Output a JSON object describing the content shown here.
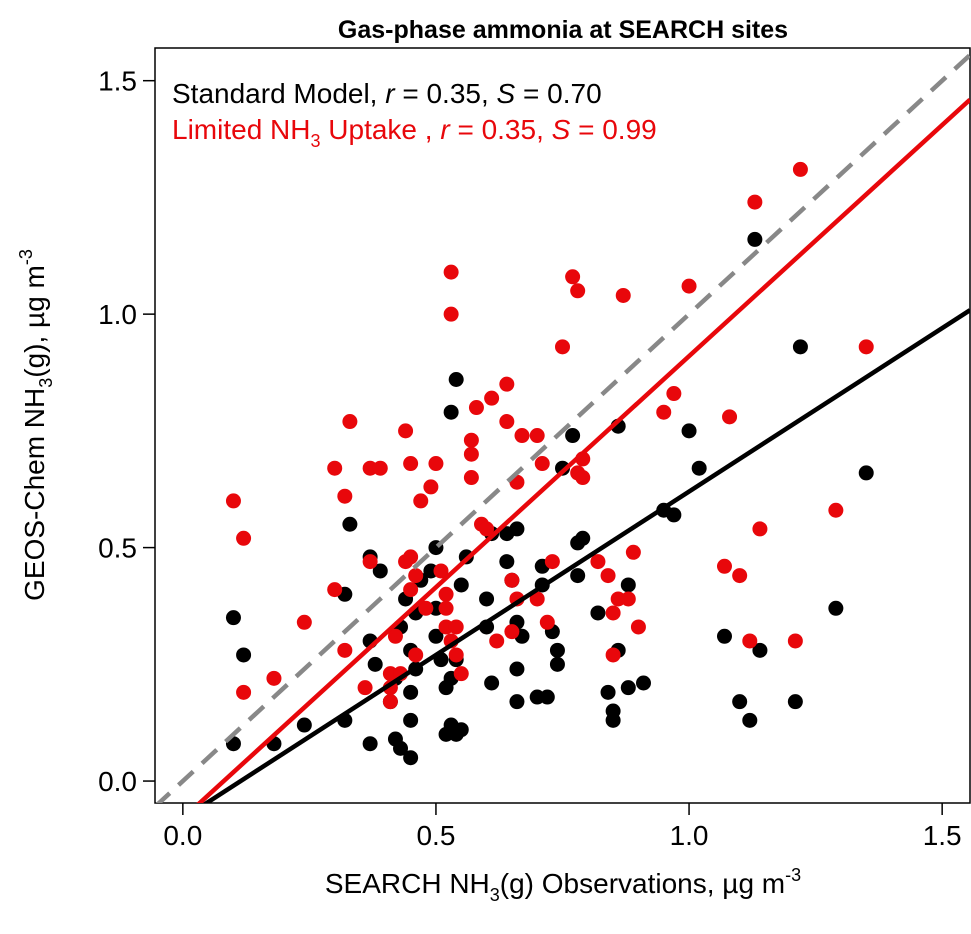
{
  "chart_data": {
    "type": "scatter",
    "title": "Gas-phase ammonia at SEARCH sites",
    "xlabel": [
      {
        "text": "SEARCH NH"
      },
      {
        "text": "3",
        "sub": true
      },
      {
        "text": "(g) Observations, µg m"
      },
      {
        "text": "-3",
        "sup": true
      }
    ],
    "ylabel": [
      {
        "text": "GEOS-Chem NH"
      },
      {
        "text": "3",
        "sub": true
      },
      {
        "text": "(g), µg m"
      },
      {
        "text": "-3",
        "sup": true
      }
    ],
    "xlim": [
      -0.055,
      1.555
    ],
    "ylim": [
      -0.047,
      1.57
    ],
    "xticks": [
      {
        "value": 0,
        "label": "0.0"
      },
      0.5,
      {
        "value": 1,
        "label": "1.0"
      },
      1.5
    ],
    "yticks": [
      {
        "value": 0,
        "label": "0.0"
      },
      0.5,
      {
        "value": 1,
        "label": "1.0"
      },
      1.5
    ],
    "reference_line": {
      "slope": 1,
      "intercept": 0,
      "color": "#888888",
      "dashed": true
    },
    "series": [
      {
        "name": [
          {
            "text": "Standard Model, "
          },
          {
            "text": "r",
            "italic": true
          },
          {
            "text": " = 0.35, "
          },
          {
            "text": "S",
            "italic": true
          },
          {
            "text": " = 0.70"
          }
        ],
        "color": "#000000",
        "fit": {
          "slope": 0.7,
          "intercept": -0.08
        },
        "x": [
          0.1,
          0.12,
          0.1,
          0.18,
          0.24,
          0.32,
          0.33,
          0.32,
          0.37,
          0.37,
          0.37,
          0.38,
          0.39,
          0.41,
          0.42,
          0.42,
          0.43,
          0.43,
          0.44,
          0.45,
          0.45,
          0.45,
          0.45,
          0.46,
          0.46,
          0.47,
          0.49,
          0.5,
          0.5,
          0.5,
          0.51,
          0.52,
          0.52,
          0.53,
          0.54,
          0.55,
          0.53,
          0.54,
          0.55,
          0.56,
          0.54,
          0.53,
          0.6,
          0.6,
          0.61,
          0.61,
          0.64,
          0.64,
          0.65,
          0.66,
          0.66,
          0.66,
          0.66,
          0.67,
          0.7,
          0.71,
          0.71,
          0.72,
          0.73,
          0.74,
          0.74,
          0.75,
          0.77,
          0.78,
          0.78,
          0.79,
          0.82,
          0.84,
          0.85,
          0.85,
          0.86,
          0.86,
          0.88,
          0.88,
          0.91,
          0.95,
          0.97,
          1.0,
          1.02,
          1.07,
          1.1,
          1.12,
          1.13,
          1.14,
          1.21,
          1.22,
          1.29,
          1.35
        ],
        "values": [
          0.08,
          0.27,
          0.35,
          0.08,
          0.12,
          0.4,
          0.55,
          0.13,
          0.08,
          0.48,
          0.3,
          0.25,
          0.45,
          0.17,
          0.22,
          0.09,
          0.07,
          0.33,
          0.39,
          0.28,
          0.05,
          0.13,
          0.19,
          0.24,
          0.36,
          0.43,
          0.45,
          0.5,
          0.37,
          0.31,
          0.26,
          0.2,
          0.1,
          0.12,
          0.1,
          0.11,
          0.22,
          0.26,
          0.42,
          0.48,
          0.86,
          0.79,
          0.39,
          0.33,
          0.21,
          0.53,
          0.53,
          0.47,
          0.43,
          0.34,
          0.24,
          0.17,
          0.54,
          0.31,
          0.18,
          0.46,
          0.42,
          0.18,
          0.32,
          0.25,
          0.28,
          0.67,
          0.74,
          0.44,
          0.51,
          0.52,
          0.36,
          0.19,
          0.13,
          0.15,
          0.28,
          0.76,
          0.42,
          0.2,
          0.21,
          0.58,
          0.57,
          0.75,
          0.67,
          0.31,
          0.17,
          0.13,
          1.16,
          0.28,
          0.17,
          0.93,
          0.37,
          0.66
        ]
      },
      {
        "name": [
          {
            "text": "Limited NH"
          },
          {
            "text": "3",
            "sub": true
          },
          {
            "text": " Uptake , "
          },
          {
            "text": "r",
            "italic": true
          },
          {
            "text": " = 0.35, "
          },
          {
            "text": "S",
            "italic": true
          },
          {
            "text": " = 0.99"
          }
        ],
        "color": "#e8070b",
        "fit": {
          "slope": 0.99,
          "intercept": -0.08
        },
        "x": [
          0.1,
          0.12,
          0.12,
          0.18,
          0.24,
          0.3,
          0.3,
          0.32,
          0.33,
          0.32,
          0.37,
          0.39,
          0.37,
          0.36,
          0.41,
          0.41,
          0.41,
          0.42,
          0.43,
          0.44,
          0.44,
          0.45,
          0.45,
          0.45,
          0.46,
          0.46,
          0.47,
          0.48,
          0.49,
          0.5,
          0.51,
          0.52,
          0.52,
          0.52,
          0.53,
          0.53,
          0.53,
          0.54,
          0.54,
          0.55,
          0.57,
          0.57,
          0.57,
          0.58,
          0.59,
          0.6,
          0.61,
          0.62,
          0.64,
          0.64,
          0.65,
          0.65,
          0.66,
          0.67,
          0.66,
          0.7,
          0.71,
          0.7,
          0.72,
          0.73,
          0.75,
          0.77,
          0.78,
          0.78,
          0.79,
          0.79,
          0.82,
          0.84,
          0.85,
          0.85,
          0.86,
          0.87,
          0.88,
          0.89,
          0.9,
          0.95,
          0.97,
          1.0,
          1.07,
          1.08,
          1.1,
          1.12,
          1.13,
          1.14,
          1.21,
          1.22,
          1.29,
          1.35
        ],
        "values": [
          0.6,
          0.52,
          0.19,
          0.22,
          0.34,
          0.67,
          0.41,
          0.61,
          0.77,
          0.28,
          0.67,
          0.67,
          0.47,
          0.2,
          0.23,
          0.2,
          0.17,
          0.31,
          0.23,
          0.47,
          0.75,
          0.41,
          0.48,
          0.68,
          0.44,
          0.27,
          0.6,
          0.37,
          0.63,
          0.68,
          0.45,
          0.4,
          0.37,
          0.33,
          0.3,
          1.09,
          1.0,
          0.33,
          0.27,
          0.23,
          0.65,
          0.7,
          0.73,
          0.8,
          0.55,
          0.54,
          0.82,
          0.3,
          0.85,
          0.77,
          0.32,
          0.43,
          0.39,
          0.74,
          0.64,
          0.74,
          0.68,
          0.39,
          0.34,
          0.47,
          0.93,
          1.08,
          1.05,
          0.66,
          0.69,
          0.65,
          0.47,
          0.44,
          0.27,
          0.36,
          0.39,
          1.04,
          0.39,
          0.49,
          0.33,
          0.79,
          0.83,
          1.06,
          0.46,
          0.78,
          0.44,
          0.3,
          1.24,
          0.54,
          0.3,
          1.31,
          0.58,
          0.93
        ]
      }
    ]
  }
}
